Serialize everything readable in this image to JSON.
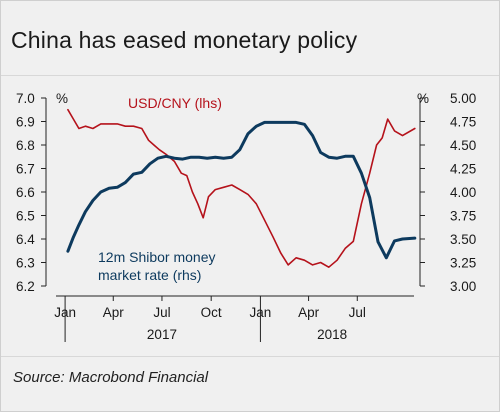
{
  "title": "China has eased monetary policy",
  "source": "Source: Macrobond Financial",
  "chart_data": {
    "type": "line",
    "title": "China has eased monetary policy",
    "x_axis": {
      "tick_labels": [
        "Jan",
        "Apr",
        "Jul",
        "Oct",
        "Jan",
        "Apr",
        "Jul"
      ],
      "year_labels": [
        "2017",
        "2018"
      ],
      "range": [
        "2016-12-15",
        "2018-10-15"
      ]
    },
    "left_axis": {
      "unit": "%",
      "ticks": [
        "7.0",
        "6.9",
        "6.8",
        "6.7",
        "6.6",
        "6.5",
        "6.4",
        "6.3",
        "6.2"
      ],
      "range": [
        6.2,
        7.0
      ]
    },
    "right_axis": {
      "unit": "%",
      "ticks": [
        "5.00",
        "4.75",
        "4.50",
        "4.25",
        "4.00",
        "3.75",
        "3.50",
        "3.25",
        "3.00"
      ],
      "range": [
        3.0,
        5.0
      ]
    },
    "legend": "inline labels",
    "grid": false,
    "series": [
      {
        "name": "USD/CNY (lhs)",
        "axis": "left",
        "color": "#b5121b",
        "x": [
          "2017-01",
          "2017-01",
          "2017-01",
          "2017-02",
          "2017-02",
          "2017-03",
          "2017-03",
          "2017-04",
          "2017-04",
          "2017-05",
          "2017-05",
          "2017-06",
          "2017-06",
          "2017-06",
          "2017-07",
          "2017-07",
          "2017-08",
          "2017-08",
          "2017-08",
          "2017-09",
          "2017-09",
          "2017-09",
          "2017-10",
          "2017-10",
          "2017-11",
          "2017-11",
          "2017-12",
          "2017-12",
          "2018-01",
          "2018-01",
          "2018-02",
          "2018-02",
          "2018-03",
          "2018-03",
          "2018-04",
          "2018-04",
          "2018-05",
          "2018-05",
          "2018-06",
          "2018-06",
          "2018-07",
          "2018-07",
          "2018-08",
          "2018-08",
          "2018-08",
          "2018-09",
          "2018-09",
          "2018-10"
        ],
        "y": [
          6.95,
          6.91,
          6.87,
          6.88,
          6.87,
          6.89,
          6.89,
          6.89,
          6.88,
          6.88,
          6.87,
          6.82,
          6.8,
          6.78,
          6.76,
          6.73,
          6.68,
          6.67,
          6.6,
          6.55,
          6.49,
          6.58,
          6.61,
          6.62,
          6.63,
          6.61,
          6.59,
          6.55,
          6.48,
          6.41,
          6.34,
          6.29,
          6.32,
          6.31,
          6.29,
          6.3,
          6.28,
          6.31,
          6.36,
          6.39,
          6.55,
          6.68,
          6.8,
          6.83,
          6.91,
          6.86,
          6.84,
          6.87
        ]
      },
      {
        "name": "12m Shibor money market rate (rhs)",
        "axis": "right",
        "color": "#0d3a5e",
        "x": [
          "2017-01",
          "2017-01",
          "2017-01",
          "2017-02",
          "2017-02",
          "2017-03",
          "2017-03",
          "2017-04",
          "2017-04",
          "2017-05",
          "2017-05",
          "2017-06",
          "2017-06",
          "2017-07",
          "2017-07",
          "2017-08",
          "2017-08",
          "2017-09",
          "2017-09",
          "2017-10",
          "2017-10",
          "2017-11",
          "2017-11",
          "2017-12",
          "2017-12",
          "2018-01",
          "2018-01",
          "2018-02",
          "2018-02",
          "2018-03",
          "2018-03",
          "2018-04",
          "2018-04",
          "2018-05",
          "2018-05",
          "2018-06",
          "2018-06",
          "2018-07",
          "2018-07",
          "2018-08",
          "2018-08",
          "2018-09",
          "2018-09",
          "2018-10"
        ],
        "y": [
          3.37,
          3.52,
          3.65,
          3.79,
          3.91,
          4.0,
          4.04,
          4.05,
          4.1,
          4.19,
          4.21,
          4.3,
          4.36,
          4.38,
          4.36,
          4.35,
          4.37,
          4.37,
          4.36,
          4.37,
          4.36,
          4.37,
          4.45,
          4.62,
          4.7,
          4.74,
          4.74,
          4.74,
          4.74,
          4.74,
          4.72,
          4.6,
          4.42,
          4.37,
          4.36,
          4.38,
          4.38,
          4.2,
          3.94,
          3.47,
          3.3,
          3.48,
          3.5,
          3.51
        ]
      }
    ]
  },
  "annotations": {
    "usd_label": "USD/CNY (lhs)",
    "shibor_label_line1": "12m Shibor money",
    "shibor_label_line2": "market rate (rhs)"
  }
}
